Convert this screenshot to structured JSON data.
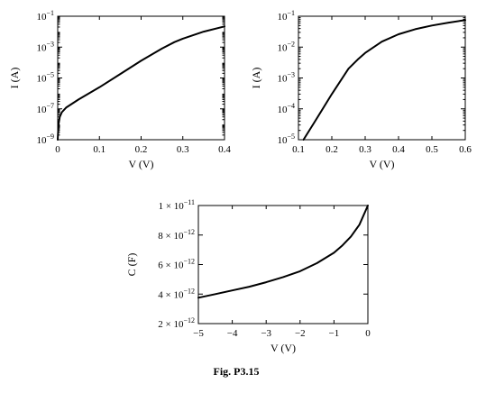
{
  "figure": {
    "caption": "Fig. P3.15"
  },
  "chart_data": [
    {
      "type": "line",
      "xlabel": "V (V)",
      "ylabel": "I (A)",
      "yscale": "log",
      "xlim": [
        0,
        0.4
      ],
      "ylim": [
        1e-09,
        0.1
      ],
      "xticks": [
        {
          "v": 0,
          "label": "0"
        },
        {
          "v": 0.1,
          "label": "0.1"
        },
        {
          "v": 0.2,
          "label": "0.2"
        },
        {
          "v": 0.3,
          "label": "0.3"
        },
        {
          "v": 0.4,
          "label": "0.4"
        }
      ],
      "yticks": [
        {
          "v": 1e-09,
          "base": "10",
          "exp": "−9"
        },
        {
          "v": 1e-07,
          "base": "10",
          "exp": "−7"
        },
        {
          "v": 1e-05,
          "base": "10",
          "exp": "−5"
        },
        {
          "v": 0.001,
          "base": "10",
          "exp": "−3"
        },
        {
          "v": 0.1,
          "base": "10",
          "exp": "−1"
        }
      ],
      "series": [
        {
          "x": [
            0,
            0.002,
            0.005,
            0.01,
            0.02,
            0.05,
            0.1,
            0.15,
            0.2,
            0.25,
            0.28,
            0.3,
            0.35,
            0.4
          ],
          "y": [
            1e-09,
            1e-08,
            3e-08,
            6e-08,
            1.2e-07,
            4e-07,
            2.5e-06,
            1.8e-05,
            0.00013,
            0.0008,
            0.0021,
            0.0035,
            0.01,
            0.022
          ]
        }
      ]
    },
    {
      "type": "line",
      "xlabel": "V (V)",
      "ylabel": "I (A)",
      "yscale": "log",
      "xlim": [
        0.1,
        0.6
      ],
      "ylim": [
        1e-05,
        0.1
      ],
      "xticks": [
        {
          "v": 0.1,
          "label": "0.1"
        },
        {
          "v": 0.2,
          "label": "0.2"
        },
        {
          "v": 0.3,
          "label": "0.3"
        },
        {
          "v": 0.4,
          "label": "0.4"
        },
        {
          "v": 0.5,
          "label": "0.5"
        },
        {
          "v": 0.6,
          "label": "0.6"
        }
      ],
      "yticks": [
        {
          "v": 1e-05,
          "base": "10",
          "exp": "−5"
        },
        {
          "v": 0.0001,
          "base": "10",
          "exp": "−4"
        },
        {
          "v": 0.001,
          "base": "10",
          "exp": "−3"
        },
        {
          "v": 0.01,
          "base": "10",
          "exp": "−2"
        },
        {
          "v": 0.1,
          "base": "10",
          "exp": "−1"
        }
      ],
      "series": [
        {
          "x": [
            0.115,
            0.15,
            0.2,
            0.25,
            0.28,
            0.3,
            0.35,
            0.4,
            0.45,
            0.5,
            0.55,
            0.6
          ],
          "y": [
            1e-05,
            4e-05,
            0.0003,
            0.002,
            0.0042,
            0.0065,
            0.015,
            0.026,
            0.038,
            0.05,
            0.062,
            0.075
          ]
        }
      ]
    },
    {
      "type": "line",
      "xlabel": "V (V)",
      "ylabel": "C (F)",
      "xlim": [
        -5,
        0
      ],
      "ylim": [
        2e-12,
        1e-11
      ],
      "xticks": [
        {
          "v": -5,
          "label": "−5"
        },
        {
          "v": -4,
          "label": "−4"
        },
        {
          "v": -3,
          "label": "−3"
        },
        {
          "v": -2,
          "label": "−2"
        },
        {
          "v": -1,
          "label": "−1"
        },
        {
          "v": 0,
          "label": "0"
        }
      ],
      "yticks": [
        {
          "v": 2e-12,
          "mant": "2",
          "base": "10",
          "exp": "−12"
        },
        {
          "v": 4e-12,
          "mant": "4",
          "base": "10",
          "exp": "−12"
        },
        {
          "v": 6e-12,
          "mant": "6",
          "base": "10",
          "exp": "−12"
        },
        {
          "v": 8e-12,
          "mant": "8",
          "base": "10",
          "exp": "−12"
        },
        {
          "v": 1e-11,
          "mant": "1",
          "base": "10",
          "exp": "−11"
        }
      ],
      "series": [
        {
          "x": [
            -5,
            -4.5,
            -4,
            -3.5,
            -3,
            -2.5,
            -2,
            -1.5,
            -1,
            -0.75,
            -0.5,
            -0.25,
            0
          ],
          "y": [
            3.75e-12,
            4e-12,
            4.25e-12,
            4.5e-12,
            4.8e-12,
            5.15e-12,
            5.55e-12,
            6.1e-12,
            6.8e-12,
            7.3e-12,
            7.9e-12,
            8.7e-12,
            1e-11
          ]
        }
      ]
    }
  ]
}
